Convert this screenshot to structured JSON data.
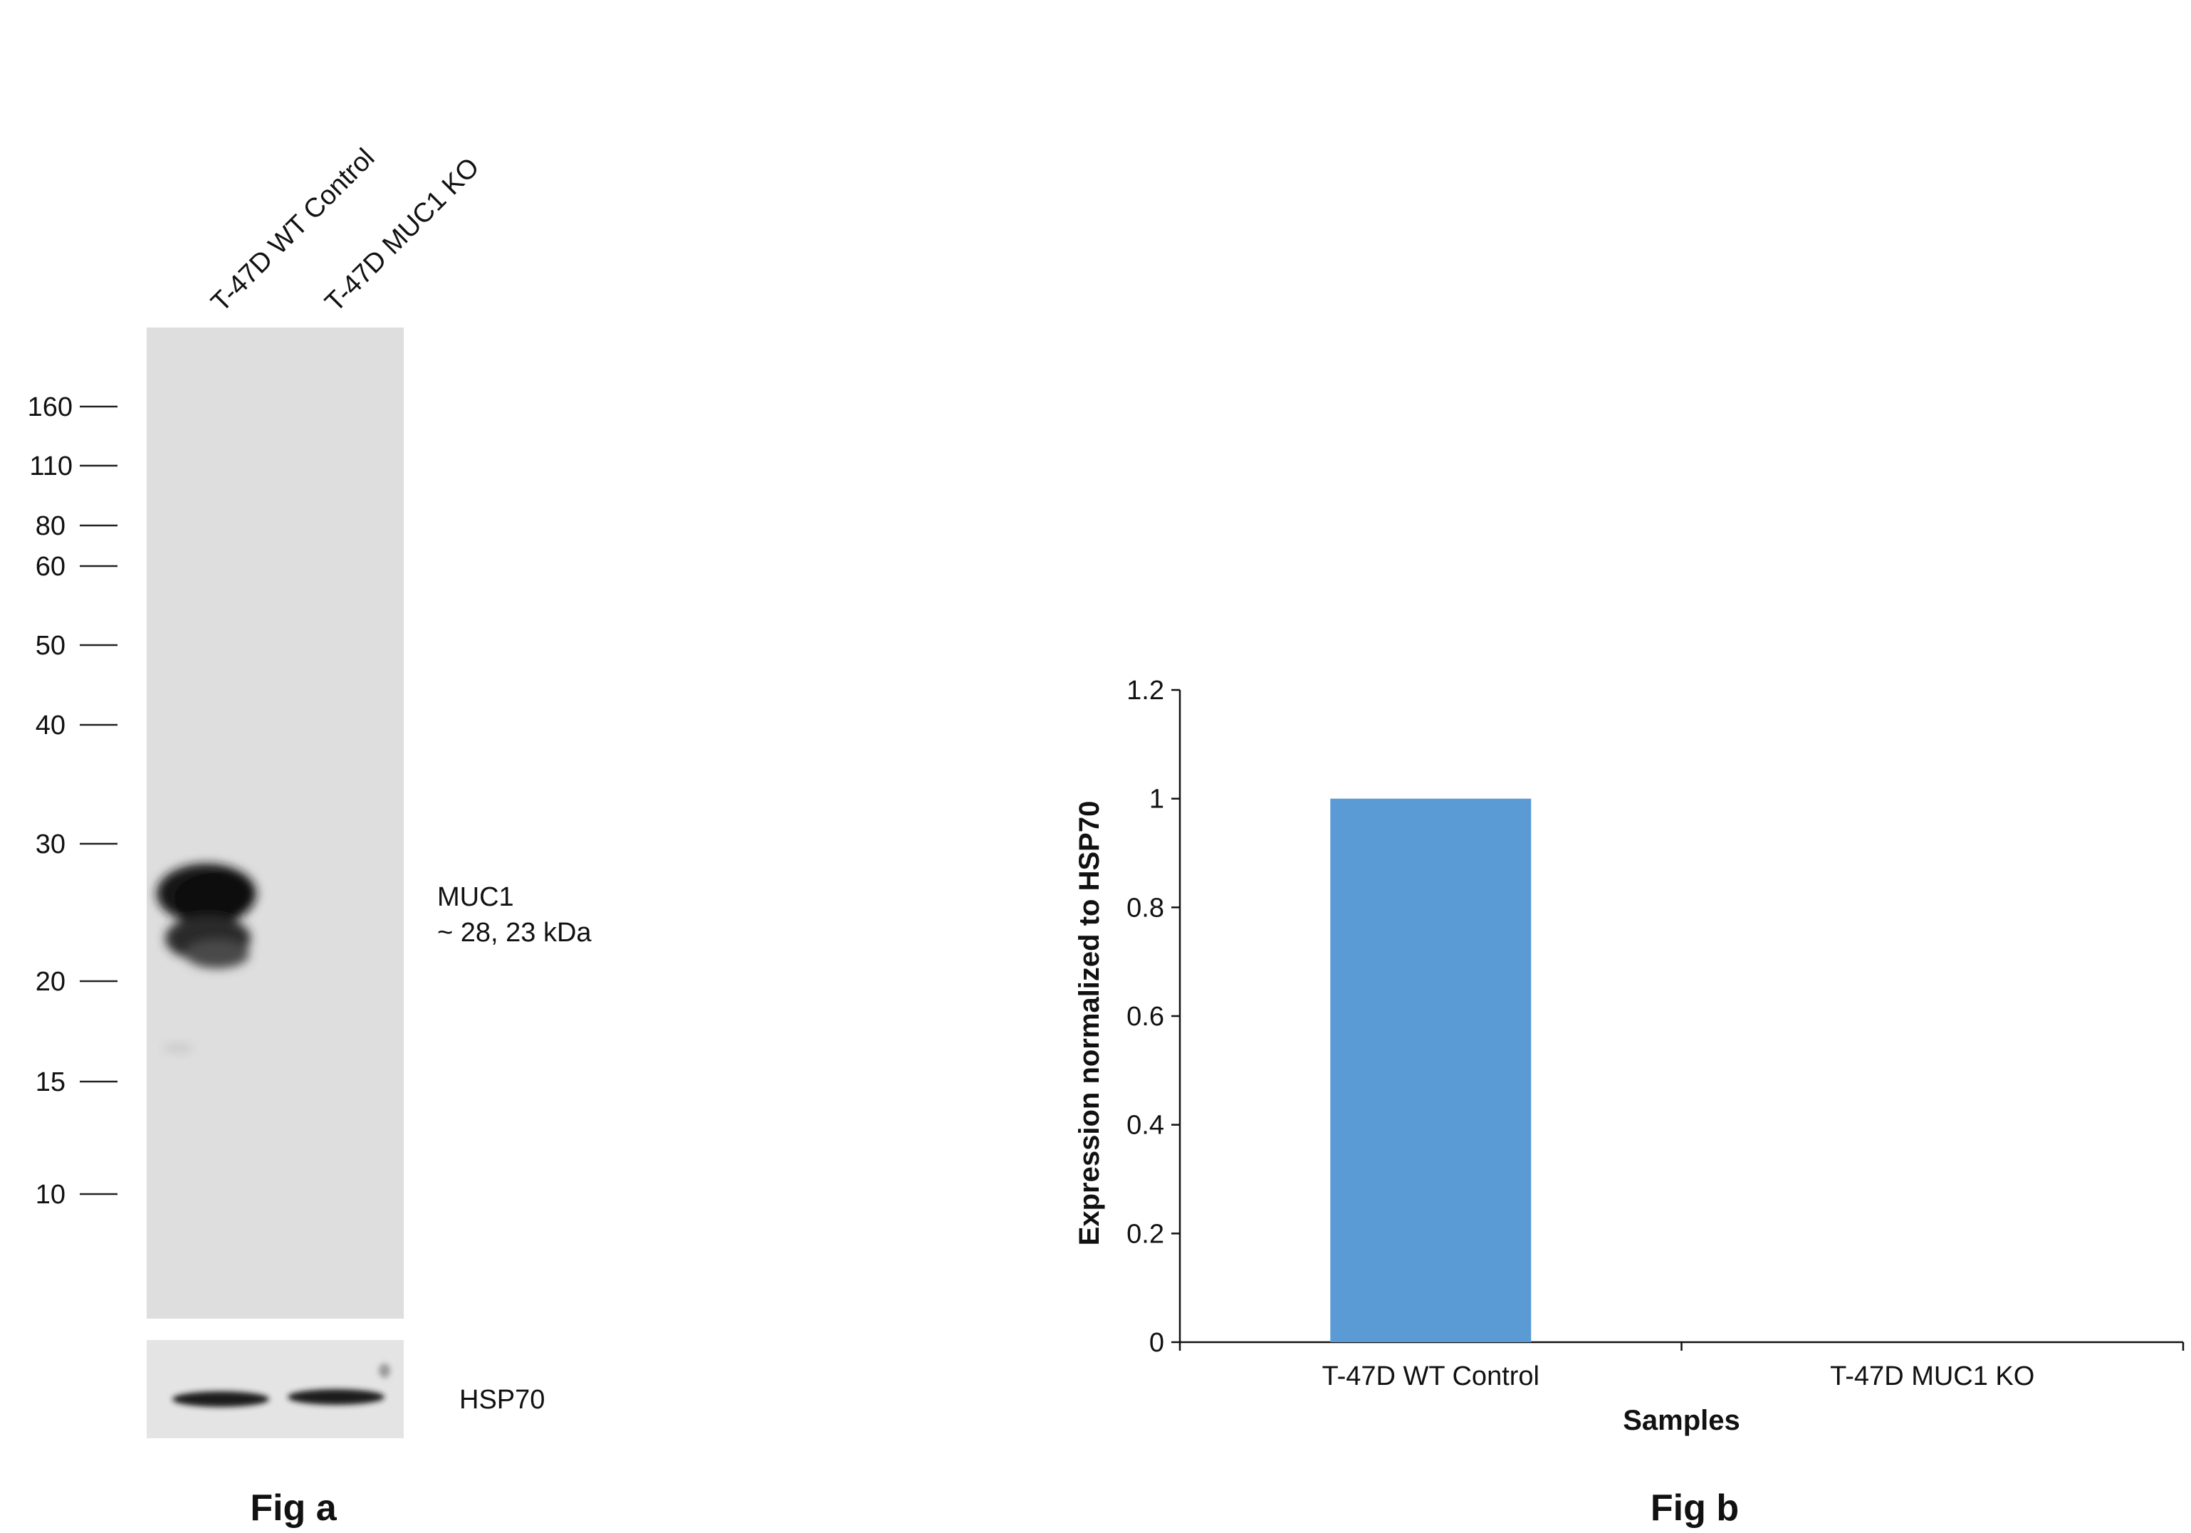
{
  "figure_a": {
    "caption": "Fig a",
    "lanes": [
      "T-47D WT Control",
      "T-47D MUC1 KO"
    ],
    "markers_kda": [
      "160",
      "110",
      "80",
      "60",
      "50",
      "40",
      "30",
      "20",
      "15",
      "10"
    ],
    "band_label_name": "MUC1",
    "band_label_size": "~ 28, 23 kDa",
    "loading_control": "HSP70",
    "colors": {
      "membrane": "#dedede",
      "band": "#141414"
    }
  },
  "figure_b": {
    "caption": "Fig b"
  },
  "chart_data": {
    "type": "bar",
    "categories": [
      "T-47D WT Control",
      "T-47D MUC1 KO"
    ],
    "values": [
      1.0,
      0.0
    ],
    "xlabel": "Samples",
    "ylabel": "Expression normalized to HSP70",
    "ylim": [
      0,
      1.2
    ],
    "yticks": [
      "0",
      "0.2",
      "0.4",
      "0.6",
      "0.8",
      "1",
      "1.2"
    ],
    "grid": false,
    "legend": "none",
    "bar_color": "#5b9bd5"
  }
}
